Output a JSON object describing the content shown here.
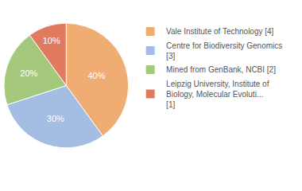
{
  "chart_data": {
    "type": "pie",
    "categories": [
      "Vale Institute of Technology [4]",
      "Centre for Biodiversity Genomics [3]",
      "Mined from GenBank, NCBI [2]",
      "Leipzig University, Institute of Biology, Molecular Evoluti... [1]"
    ],
    "values": [
      40,
      30,
      20,
      10
    ],
    "value_labels": [
      "40%",
      "30%",
      "20%",
      "10%"
    ],
    "colors": [
      "#f0ad73",
      "#a3bde3",
      "#a4c97d",
      "#e07b5f"
    ],
    "data_labels": true,
    "legend": "upper right"
  }
}
